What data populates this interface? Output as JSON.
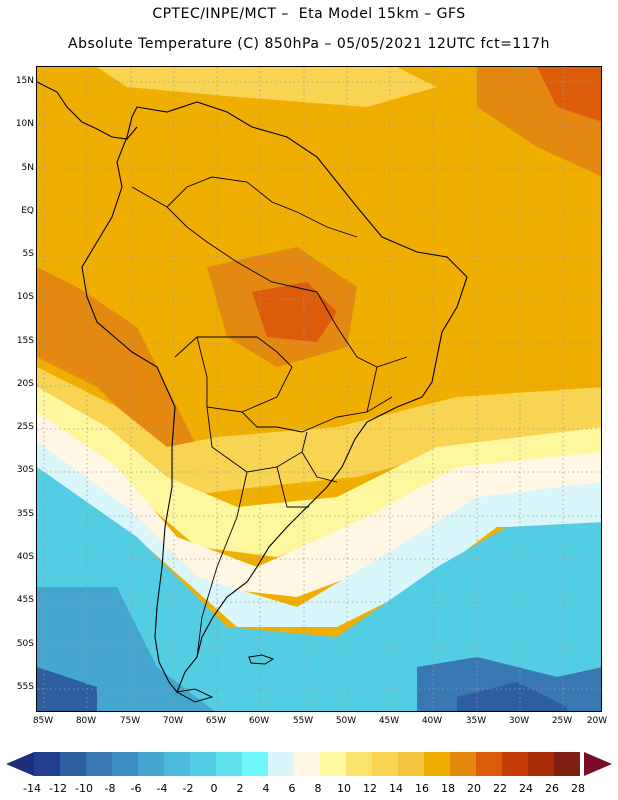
{
  "header": {
    "line1": "CPTEC/INPE/MCT –  Eta Model 15km – GFS",
    "line2": "Absolute Temperature (C) 850hPa – 05/05/2021 12UTC fct=117h"
  },
  "map": {
    "lat_labels": [
      "15N",
      "10N",
      "5N",
      "EQ",
      "5S",
      "10S",
      "15S",
      "20S",
      "25S",
      "30S",
      "35S",
      "40S",
      "45S",
      "50S",
      "55S"
    ],
    "lon_labels": [
      "85W",
      "80W",
      "75W",
      "70W",
      "65W",
      "60W",
      "55W",
      "50W",
      "45W",
      "40W",
      "35W",
      "30W",
      "25W",
      "20W"
    ],
    "grid": "dotted"
  },
  "colorbar": {
    "colors": [
      "#213e8f",
      "#2d5ea0",
      "#3a78b4",
      "#3b8ec2",
      "#44a6cf",
      "#4cbbdb",
      "#52cde3",
      "#5fe1ec",
      "#6ff8fb",
      "#d9f6fb",
      "#fff7e3",
      "#fff79e",
      "#fae36c",
      "#f8d452",
      "#f2c43b",
      "#f0ae00",
      "#e4880f",
      "#dc5c0b",
      "#c63e06",
      "#a62a05",
      "#7e1e10"
    ],
    "left_arrow_color": "#1c2d7a",
    "right_arrow_color": "#7a0d26",
    "ticks": [
      "-14",
      "-12",
      "-10",
      "-8",
      "-6",
      "-4",
      "-2",
      "0",
      "2",
      "4",
      "6",
      "8",
      "10",
      "12",
      "14",
      "16",
      "18",
      "20",
      "22",
      "24",
      "26",
      "28"
    ]
  }
}
